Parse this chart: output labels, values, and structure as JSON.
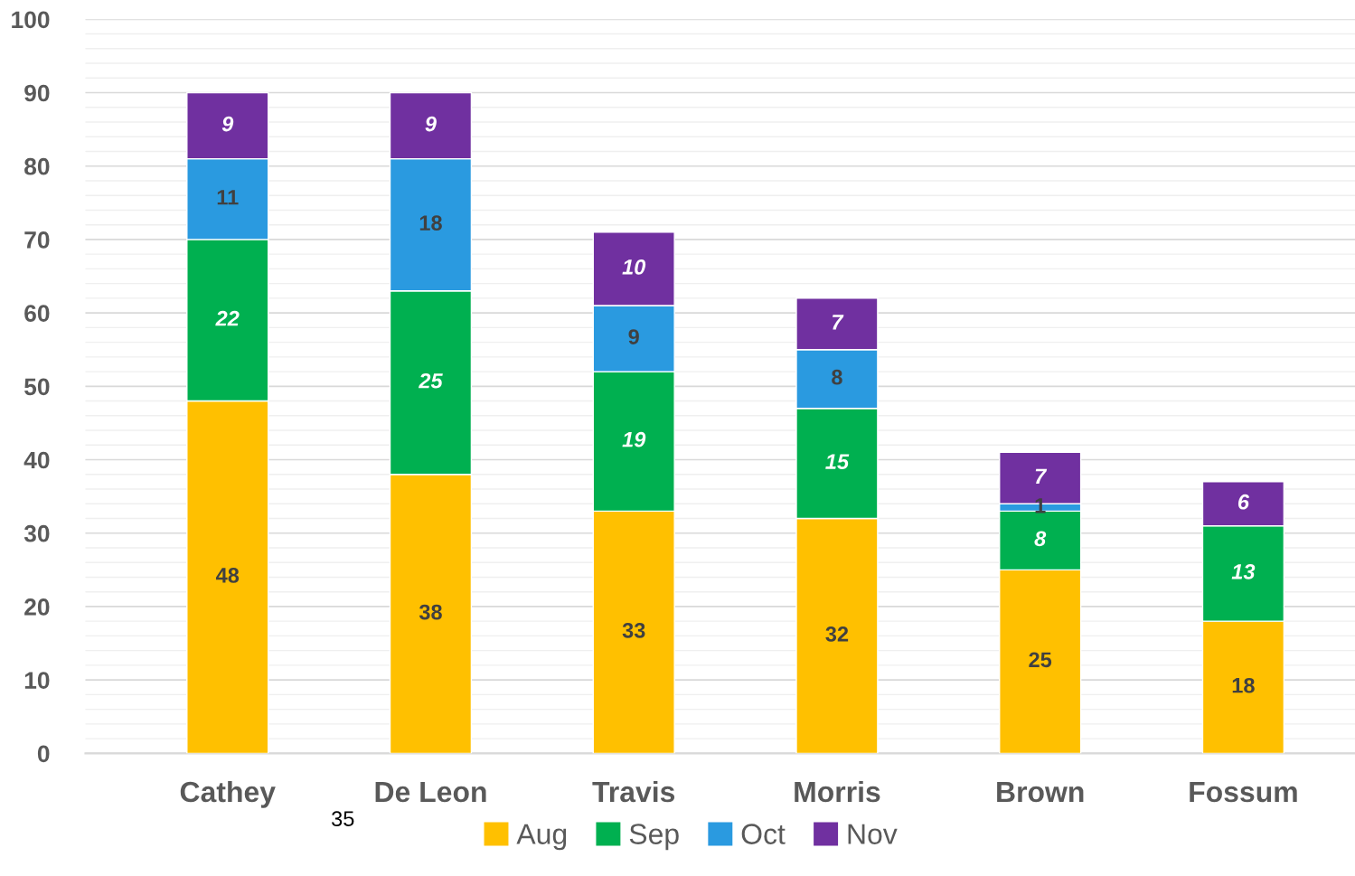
{
  "chart_data": {
    "type": "bar",
    "stacked": true,
    "categories": [
      "Cathey",
      "De Leon",
      "Travis",
      "Morris",
      "Brown",
      "Fossum"
    ],
    "series": [
      {
        "name": "Aug",
        "color": "#ffc000",
        "values": [
          48,
          38,
          33,
          32,
          25,
          18
        ]
      },
      {
        "name": "Sep",
        "color": "#00b050",
        "values": [
          22,
          25,
          19,
          15,
          8,
          13
        ]
      },
      {
        "name": "Oct",
        "color": "#2a9ae0",
        "values": [
          11,
          18,
          9,
          8,
          1,
          null
        ]
      },
      {
        "name": "Nov",
        "color": "#7030a0",
        "values": [
          9,
          9,
          10,
          7,
          7,
          6
        ]
      }
    ],
    "ylim": [
      0,
      100
    ],
    "yticks": [
      0,
      10,
      20,
      30,
      40,
      50,
      60,
      70,
      80,
      90,
      100
    ],
    "grid": "y",
    "legend": "bottom",
    "data_labels": true,
    "annotations": [
      "35"
    ]
  }
}
